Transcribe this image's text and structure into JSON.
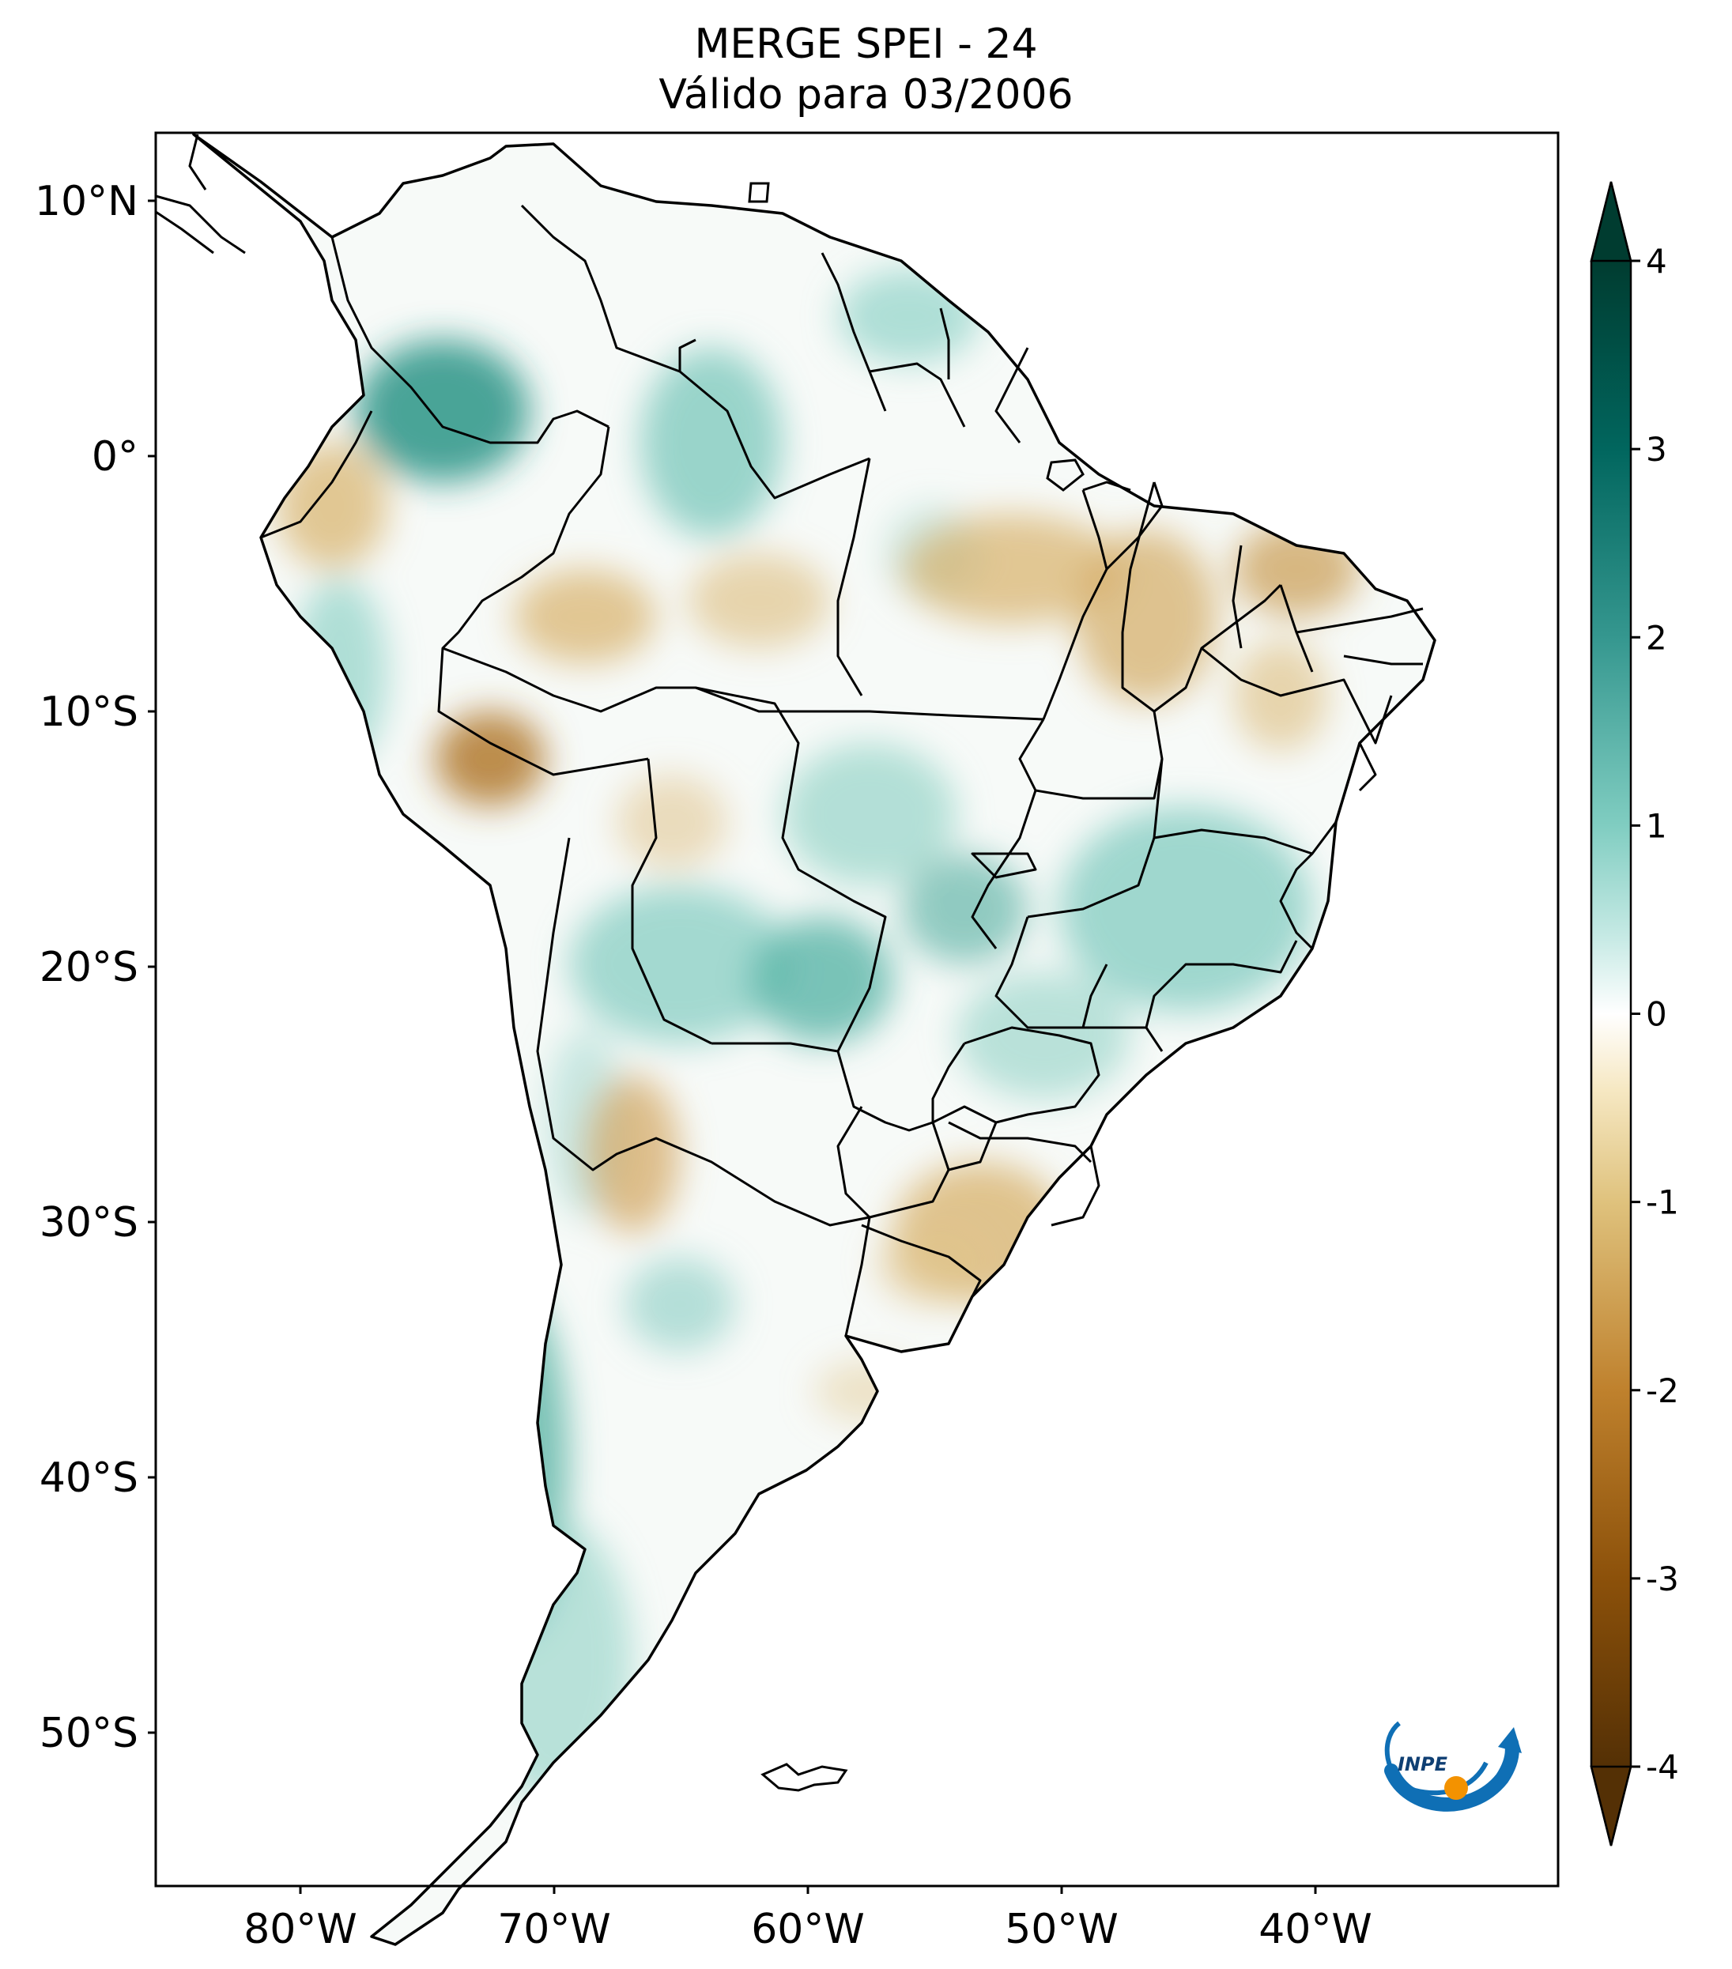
{
  "title": {
    "line1": "MERGE   SPEI - 24",
    "line2": "Válido para 03/2006"
  },
  "map": {
    "lon_range": [
      -85,
      -30
    ],
    "lat_range": [
      -56,
      13
    ],
    "lon_ticks": [
      {
        "value": -80,
        "label": "80°W"
      },
      {
        "value": -70,
        "label": "70°W"
      },
      {
        "value": -60,
        "label": "60°W"
      },
      {
        "value": -50,
        "label": "50°W"
      },
      {
        "value": -40,
        "label": "40°W"
      }
    ],
    "lat_ticks": [
      {
        "value": 10,
        "label": "10°N"
      },
      {
        "value": 0,
        "label": "0°"
      },
      {
        "value": -10,
        "label": "10°S"
      },
      {
        "value": -20,
        "label": "20°S"
      },
      {
        "value": -30,
        "label": "30°S"
      },
      {
        "value": -40,
        "label": "40°S"
      },
      {
        "value": -50,
        "label": "50°S"
      }
    ],
    "wet_color": "#1f8a7a",
    "dry_color": "#b8862b",
    "border_color": "#000000"
  },
  "colorbar": {
    "min": -4,
    "max": 4,
    "ticks": [
      {
        "value": 4,
        "label": "4"
      },
      {
        "value": 3,
        "label": "3"
      },
      {
        "value": 2,
        "label": "2"
      },
      {
        "value": 1,
        "label": "1"
      },
      {
        "value": 0,
        "label": "0"
      },
      {
        "value": -1,
        "label": "-1"
      },
      {
        "value": -2,
        "label": "-2"
      },
      {
        "value": -3,
        "label": "-3"
      },
      {
        "value": -4,
        "label": "-4"
      }
    ],
    "colors": [
      "#543005",
      "#8c510a",
      "#bf812d",
      "#dfc27d",
      "#f6e8c3",
      "#ffffff",
      "#c7eae5",
      "#80cdc1",
      "#35978f",
      "#01665e",
      "#003c30"
    ]
  },
  "logo": {
    "text": "INPE",
    "blue": "#0f6fb5",
    "orange": "#f39200"
  }
}
